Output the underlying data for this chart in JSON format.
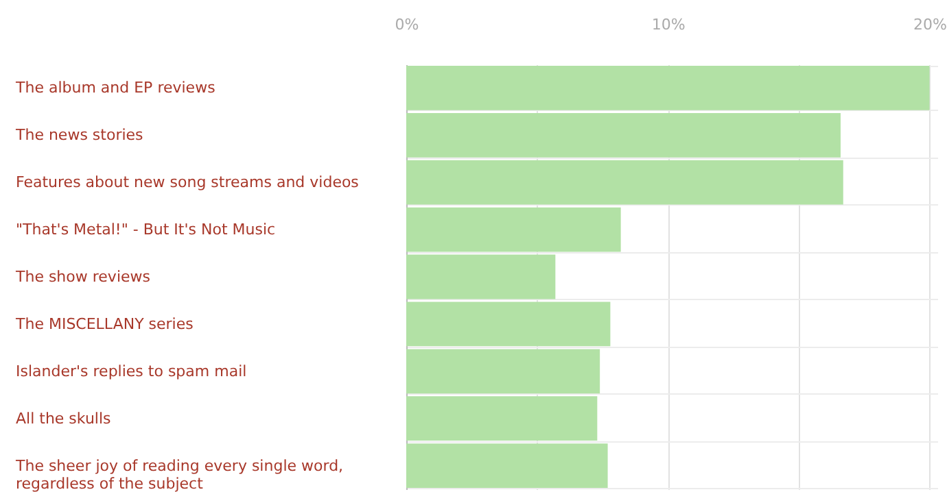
{
  "chart_data": {
    "type": "bar",
    "orientation": "horizontal",
    "categories": [
      "The album and EP reviews",
      "The news stories",
      "Features about new song streams and videos",
      "\"That's Metal!\" - But It's Not Music",
      "The show reviews",
      "The MISCELLANY series",
      "Islander's replies to spam mail",
      "All the skulls",
      "The sheer joy of reading every single word, regardless of the subject"
    ],
    "values": [
      20.0,
      16.6,
      16.7,
      8.2,
      5.7,
      7.8,
      7.4,
      7.3,
      7.7
    ],
    "color": "#b2e1a5",
    "xlim": [
      0,
      20.3
    ],
    "xticks": [
      {
        "value": 0,
        "label": "0%"
      },
      {
        "value": 5,
        "label": null
      },
      {
        "value": 10,
        "label": "10%"
      },
      {
        "value": 15,
        "label": null
      },
      {
        "value": 20,
        "label": "20%"
      }
    ],
    "grid": true
  }
}
